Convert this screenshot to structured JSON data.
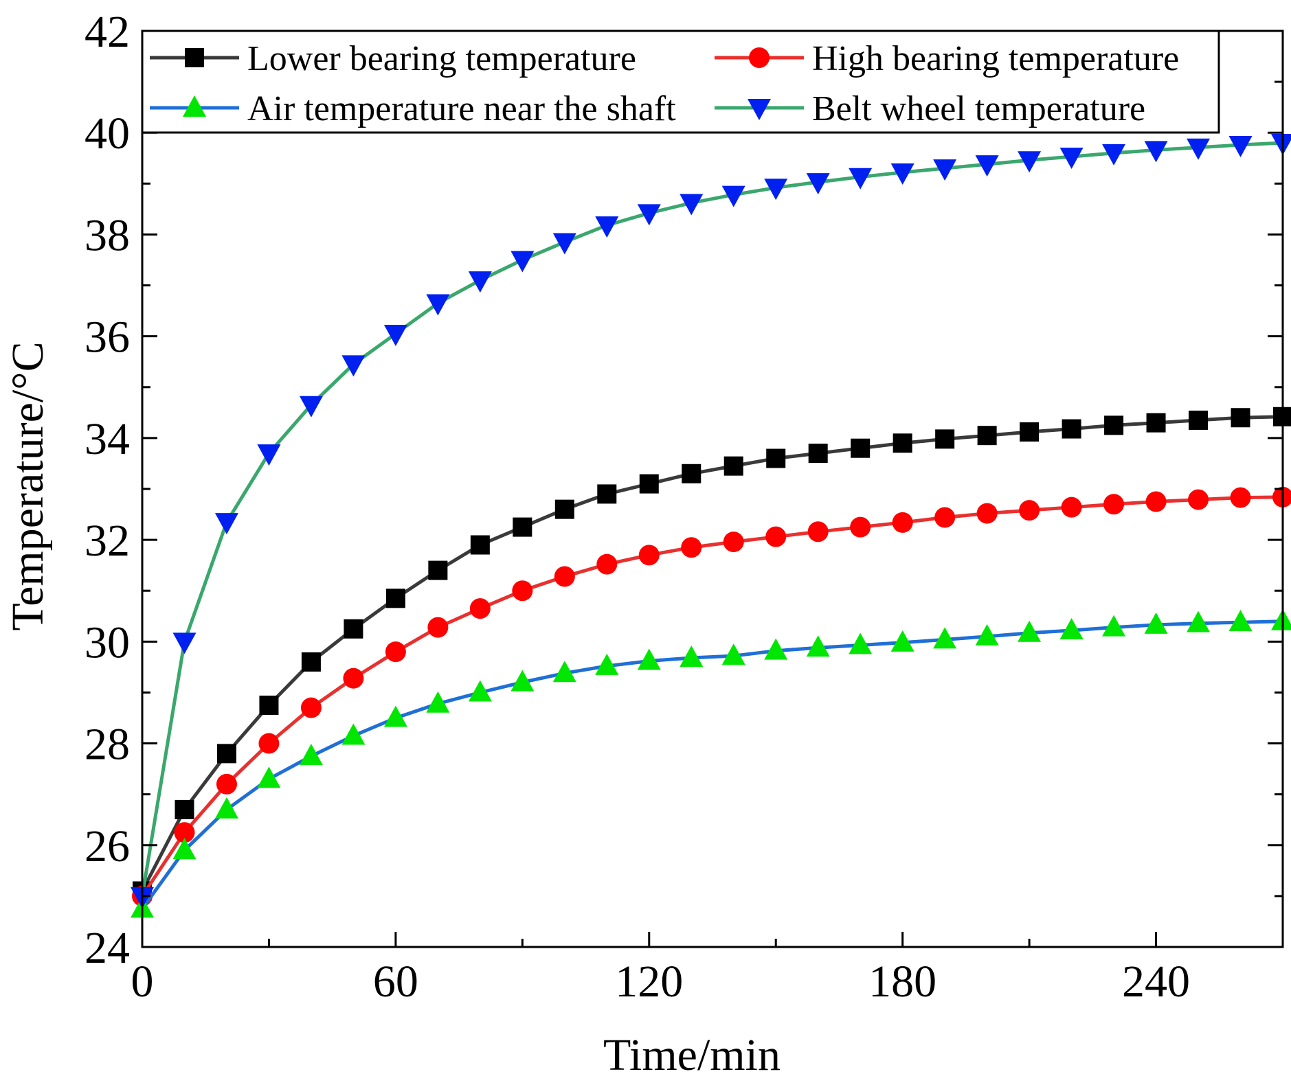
{
  "colors": {
    "lower_line": "#3a3a3a",
    "lower_marker": "#000000",
    "high_line": "#e8312f",
    "high_marker": "#ff0000",
    "air_line": "#1f6fd6",
    "air_marker": "#00e600",
    "belt_line": "#3aa76d",
    "belt_marker": "#0020f0",
    "axis": "#000000"
  },
  "chart_data": {
    "type": "line",
    "title": "",
    "xlabel": "Time/min",
    "ylabel": "Temperature/°C",
    "xlim": [
      0,
      270
    ],
    "ylim": [
      24,
      42
    ],
    "xticks": [
      "0",
      "60",
      "120",
      "180",
      "240"
    ],
    "yticks": [
      "24",
      "26",
      "28",
      "30",
      "32",
      "34",
      "36",
      "38",
      "40",
      "42"
    ],
    "x": [
      0,
      10,
      20,
      30,
      40,
      50,
      60,
      70,
      80,
      90,
      100,
      110,
      120,
      130,
      140,
      150,
      160,
      170,
      180,
      190,
      200,
      210,
      220,
      230,
      240,
      250,
      260,
      270
    ],
    "series": [
      {
        "name": "Lower bearing temperature",
        "marker": "square",
        "values": [
          25.1,
          26.7,
          27.8,
          28.75,
          29.6,
          30.25,
          30.85,
          31.4,
          31.9,
          32.25,
          32.6,
          32.9,
          33.1,
          33.3,
          33.45,
          33.6,
          33.7,
          33.8,
          33.9,
          33.98,
          34.05,
          34.12,
          34.18,
          34.25,
          34.3,
          34.35,
          34.4,
          34.42
        ]
      },
      {
        "name": "High bearing temperature",
        "marker": "circle",
        "values": [
          25.0,
          26.25,
          27.2,
          28.0,
          28.7,
          29.28,
          29.8,
          30.28,
          30.65,
          31.0,
          31.28,
          31.52,
          31.7,
          31.85,
          31.96,
          32.06,
          32.16,
          32.25,
          32.34,
          32.44,
          32.52,
          32.58,
          32.64,
          32.7,
          32.75,
          32.79,
          32.83,
          32.84
        ]
      },
      {
        "name": "Air temperature near the shaft",
        "marker": "triangle-up",
        "values": [
          24.75,
          25.9,
          26.7,
          27.3,
          27.75,
          28.15,
          28.5,
          28.78,
          29.0,
          29.2,
          29.38,
          29.52,
          29.62,
          29.68,
          29.72,
          29.82,
          29.88,
          29.93,
          29.98,
          30.04,
          30.1,
          30.17,
          30.22,
          30.28,
          30.33,
          30.36,
          30.38,
          30.4
        ]
      },
      {
        "name": "Belt wheel temperature",
        "marker": "triangle-down",
        "values": [
          25.0,
          30.0,
          32.35,
          33.7,
          34.65,
          35.45,
          36.05,
          36.65,
          37.1,
          37.5,
          37.85,
          38.18,
          38.42,
          38.62,
          38.78,
          38.92,
          39.03,
          39.13,
          39.22,
          39.3,
          39.38,
          39.46,
          39.53,
          39.6,
          39.66,
          39.71,
          39.76,
          39.8
        ]
      }
    ],
    "legend": {
      "position": "top",
      "entries": [
        "Lower bearing temperature",
        "High bearing temperature",
        "Air temperature near the shaft",
        "Belt wheel temperature"
      ]
    }
  }
}
